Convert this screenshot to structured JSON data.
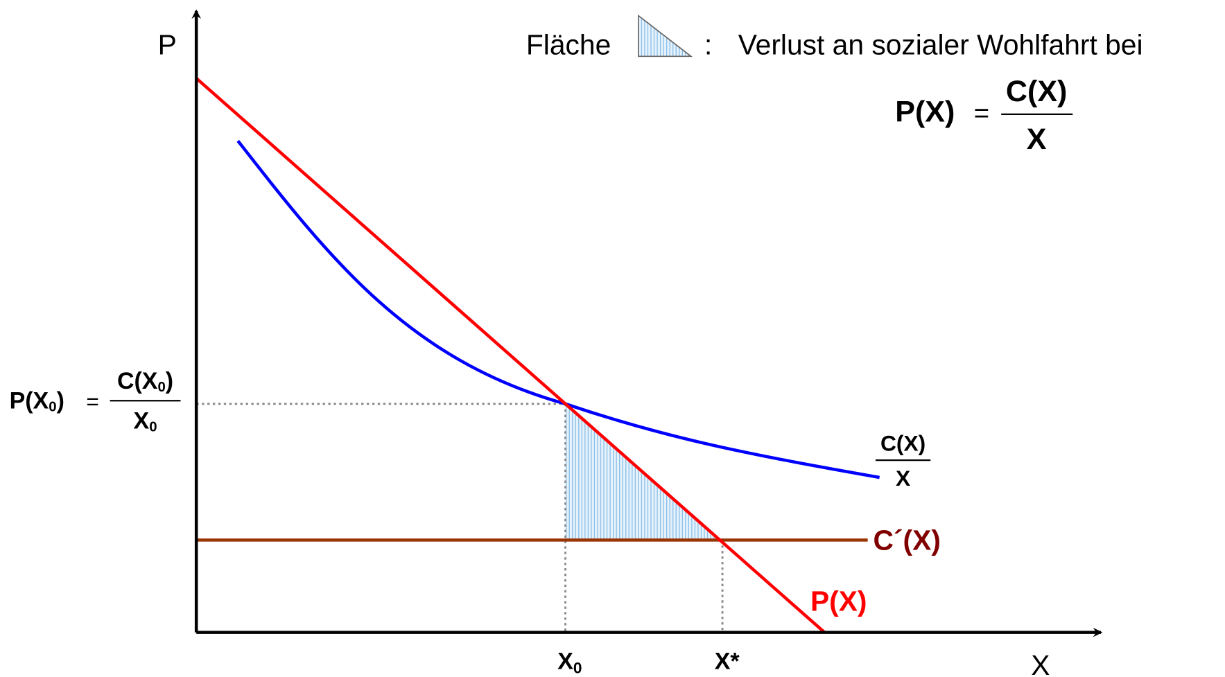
{
  "axes": {
    "y_label": "P",
    "x_label": "X"
  },
  "legend": {
    "prefix": "Fläche",
    "colon": ":",
    "text": "Verlust an sozialer Wohlfahrt bei",
    "formula": {
      "lhs": "P(X)",
      "eq": "=",
      "numerator": "C(X)",
      "denominator": "X"
    }
  },
  "curves": {
    "average_cost": {
      "numerator": "C(X)",
      "denominator": "X"
    },
    "marginal_cost": "C´(X)",
    "demand": "P(X)"
  },
  "x_markers": [
    {
      "label": "X",
      "subscript": "0"
    },
    {
      "label": "X*"
    }
  ],
  "y_marker": {
    "lhs": "P(X",
    "lhs_sub": "0",
    "lhs_close": ")",
    "eq": "=",
    "num": "C(X",
    "num_sub": "0",
    "num_close": ")",
    "den": "X",
    "den_sub": "0"
  }
}
